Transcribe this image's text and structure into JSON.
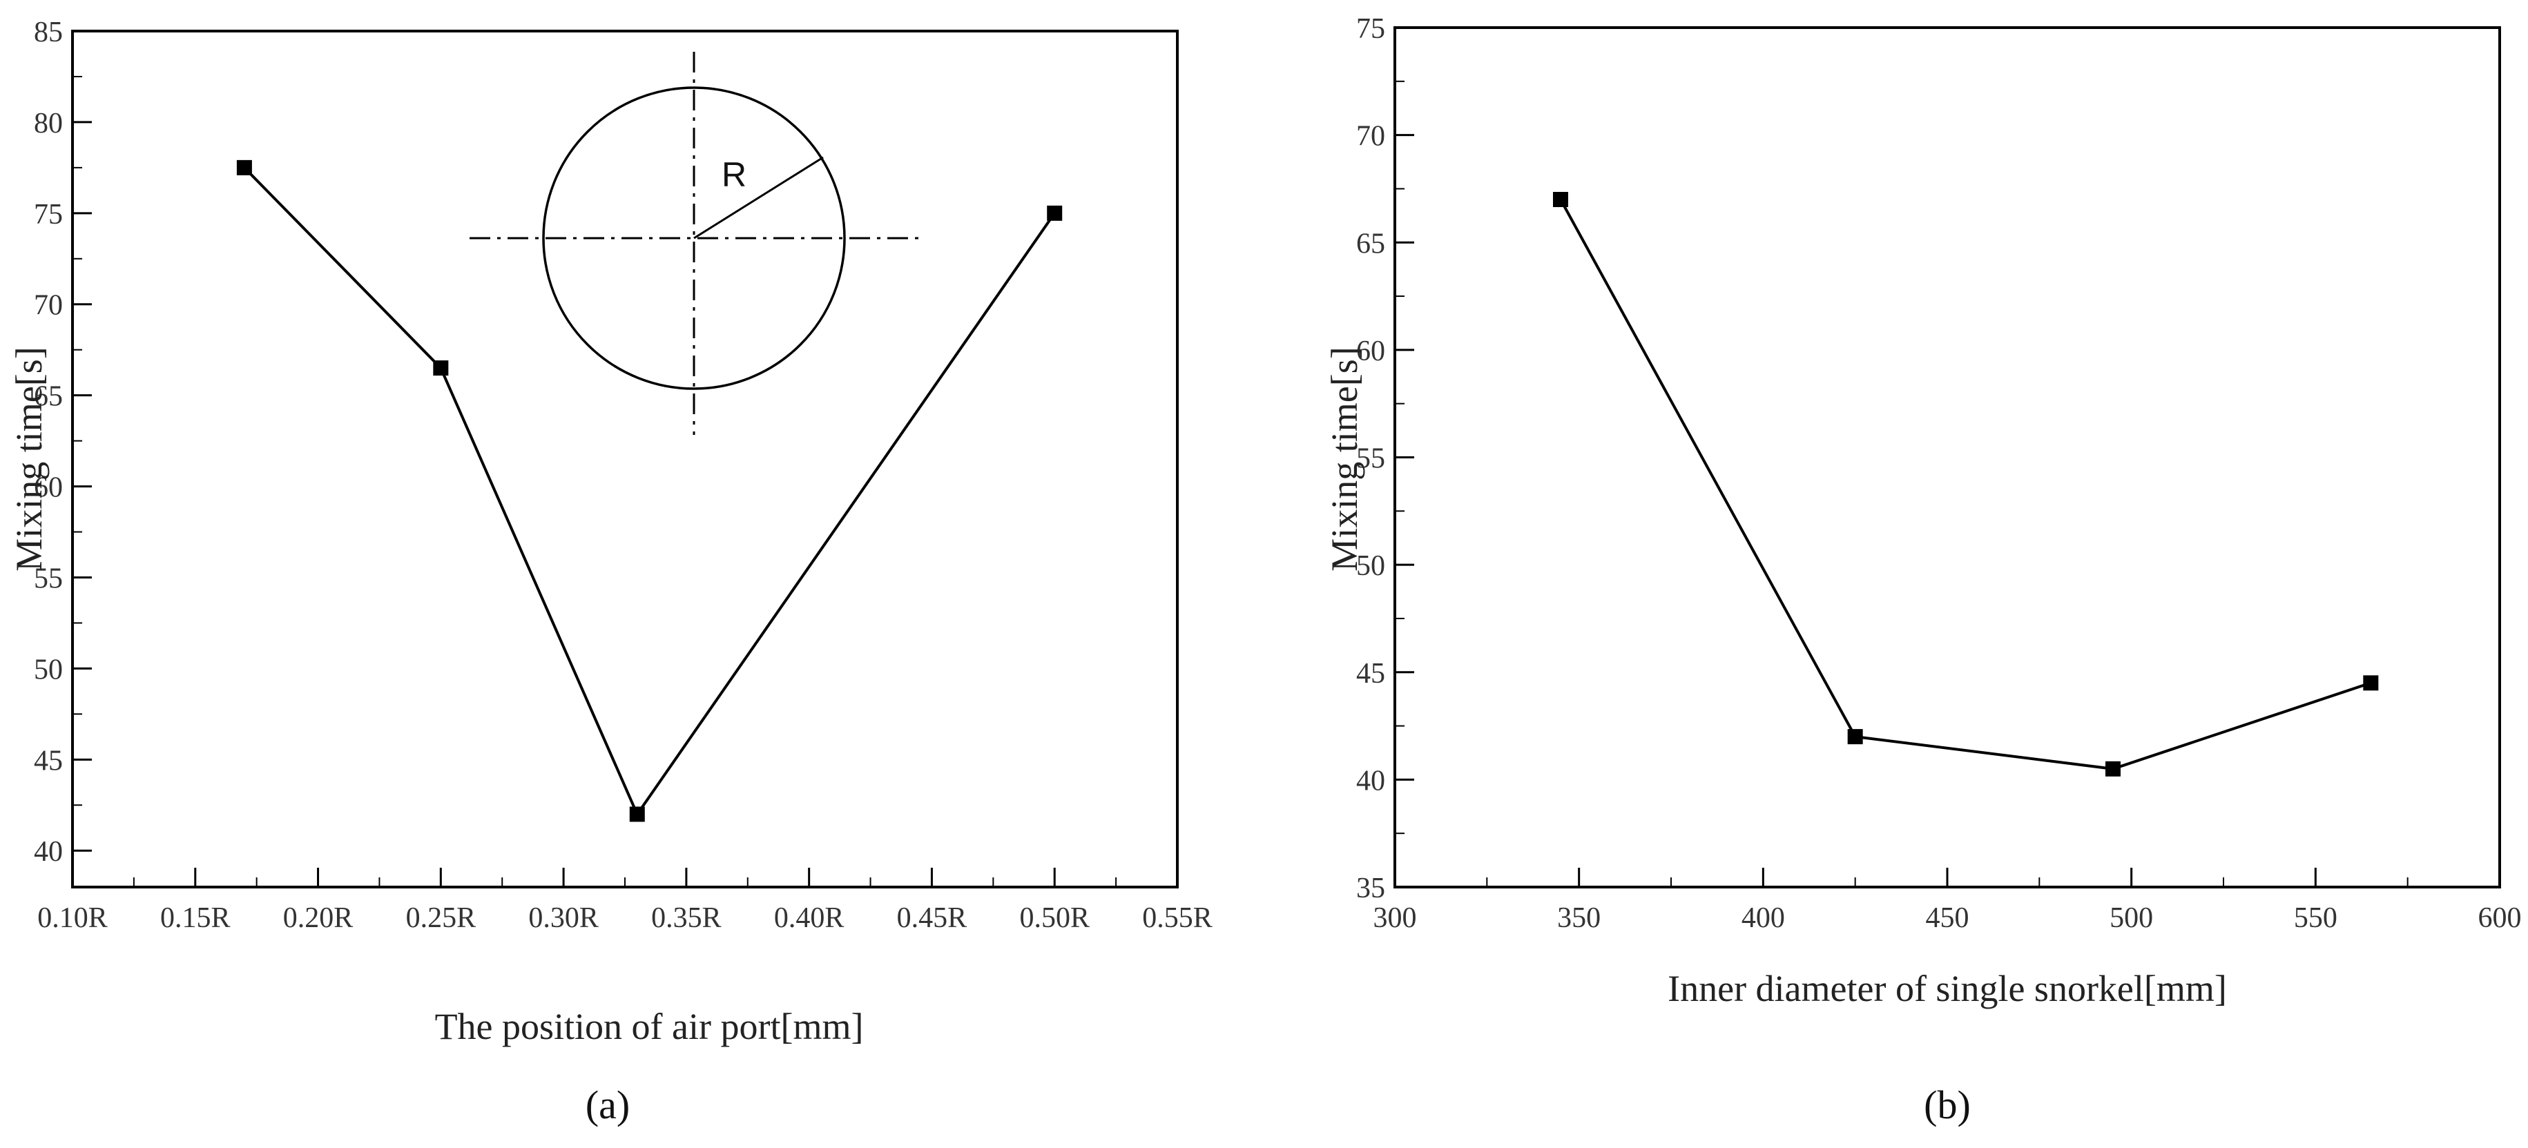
{
  "chart_data": [
    {
      "type": "line",
      "panel_label": "(a)",
      "title": "",
      "xlabel": "The position of air port[mm]",
      "ylabel": "Mixing time[s]",
      "x_tick_labels": [
        "0.10R",
        "0.15R",
        "0.20R",
        "0.25R",
        "0.30R",
        "0.35R",
        "0.40R",
        "0.45R",
        "0.50R",
        "0.55R"
      ],
      "xlim": [
        0.1,
        0.55
      ],
      "ylim": [
        38,
        85
      ],
      "y_ticks": [
        40,
        45,
        50,
        55,
        60,
        65,
        70,
        75,
        80,
        85
      ],
      "grid": false,
      "series": [
        {
          "x": [
            0.17,
            0.25,
            0.33,
            0.5
          ],
          "y": [
            77.5,
            66.5,
            42.0,
            75.0
          ],
          "marker": "square",
          "color": "#000000"
        }
      ],
      "inset": {
        "description": "circle",
        "label": "R"
      }
    },
    {
      "type": "line",
      "panel_label": "(b)",
      "title": "",
      "xlabel": "Inner diameter of single snorkel[mm]",
      "ylabel": "Mixing time[s]",
      "xlim": [
        300,
        600
      ],
      "x_ticks": [
        300,
        350,
        400,
        450,
        500,
        550,
        600
      ],
      "ylim": [
        35,
        75
      ],
      "y_ticks": [
        35,
        40,
        45,
        50,
        55,
        60,
        65,
        70,
        75
      ],
      "grid": false,
      "series": [
        {
          "x": [
            345,
            425,
            495,
            565
          ],
          "y": [
            67.0,
            42.0,
            40.5,
            44.5
          ],
          "marker": "square",
          "color": "#000000"
        }
      ]
    }
  ]
}
